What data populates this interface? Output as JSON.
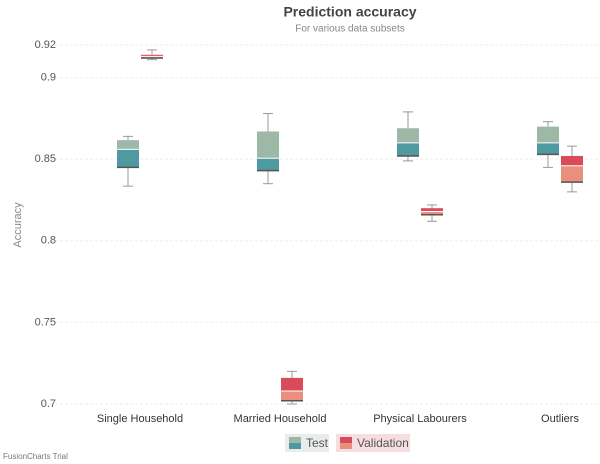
{
  "chart_data": {
    "type": "boxplot",
    "title": "Prediction accuracy",
    "subtitle": "For various data subsets",
    "y_label": "Accuracy",
    "credit": "FusionCharts Trial",
    "categories": [
      "Single Household",
      "Married Household",
      "Physical Labourers",
      "Outliers"
    ],
    "ylim": [
      0.7,
      0.92
    ],
    "yticks": [
      0.7,
      0.75,
      0.8,
      0.85,
      0.9,
      0.92
    ],
    "grid": true,
    "legend": "bottom",
    "series": [
      {
        "name": "Test",
        "color": "#9eb8a8",
        "lower_color": "#4e9aa0",
        "values": [
          {
            "min": 0.8335,
            "q1": 0.845,
            "median": 0.856,
            "q3": 0.8617,
            "max": 0.864
          },
          {
            "min": 0.835,
            "q1": 0.843,
            "median": 0.8506,
            "q3": 0.867,
            "max": 0.878
          },
          {
            "min": 0.849,
            "q1": 0.852,
            "median": 0.86,
            "q3": 0.869,
            "max": 0.879
          },
          {
            "min": 0.845,
            "q1": 0.853,
            "median": 0.86,
            "q3": 0.87,
            "max": 0.873
          }
        ]
      },
      {
        "name": "Validation",
        "color": "#d94b5a",
        "lower_color": "#e8907c",
        "values": [
          {
            "min": 0.911,
            "q1": 0.912,
            "median": 0.913,
            "q3": 0.914,
            "max": 0.917
          },
          {
            "min": 0.7,
            "q1": 0.702,
            "median": 0.708,
            "q3": 0.716,
            "max": 0.72
          },
          {
            "min": 0.812,
            "q1": 0.816,
            "median": 0.818,
            "q3": 0.82,
            "max": 0.822
          },
          {
            "min": 0.83,
            "q1": 0.836,
            "median": 0.846,
            "q3": 0.852,
            "max": 0.858
          }
        ]
      }
    ]
  }
}
